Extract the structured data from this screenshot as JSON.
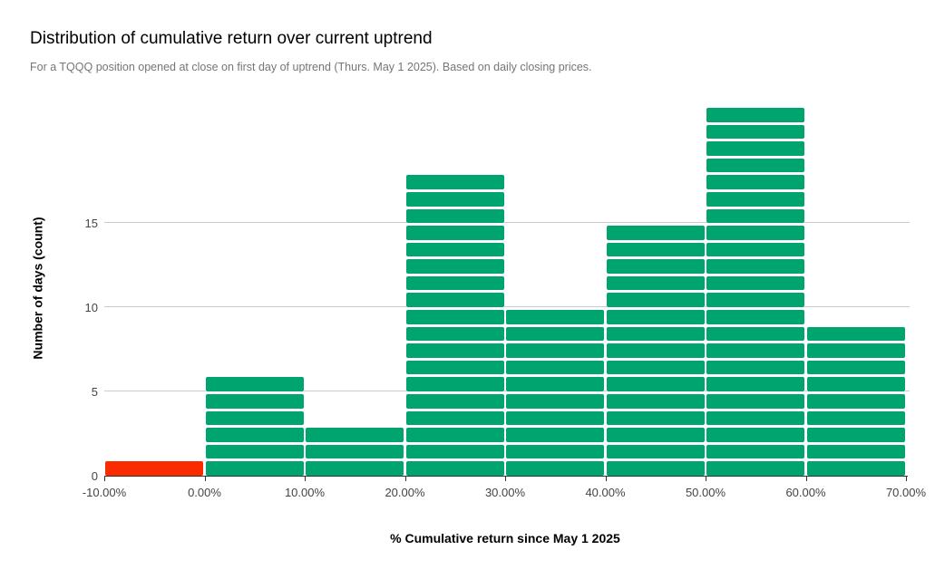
{
  "chart_data": {
    "type": "bar",
    "subtype": "histogram",
    "title": "Distribution of cumulative return over current uptrend",
    "subtitle": "For a TQQQ position opened at close on first day of uptrend (Thurs. May 1 2025). Based on daily closing prices.",
    "xlabel": "% Cumulative return since May 1 2025",
    "ylabel": "Number of days (count)",
    "categories": [
      "-10% to 0%",
      "0% to 10%",
      "10% to 20%",
      "20% to 30%",
      "30% to 40%",
      "40% to 50%",
      "50% to 60%",
      "60% to 70%"
    ],
    "values": [
      1,
      6,
      3,
      18,
      10,
      15,
      22,
      9
    ],
    "bar_colors": [
      "#fb2b00",
      "#00a46e",
      "#00a46e",
      "#00a46e",
      "#00a46e",
      "#00a46e",
      "#00a46e",
      "#00a46e"
    ],
    "x_tick_labels": [
      "-10.00%",
      "0.00%",
      "10.00%",
      "20.00%",
      "30.00%",
      "40.00%",
      "50.00%",
      "60.00%",
      "70.00%"
    ],
    "y_ticks": [
      0,
      5,
      10,
      15
    ],
    "ylim": [
      0,
      22
    ],
    "grid": true,
    "legend_position": "none",
    "style": {
      "segmented_bars": true,
      "positive_color": "#00a46e",
      "negative_color": "#fb2b00",
      "gridline_color": "#cccccc",
      "axis_color": "#333333",
      "tick_label_color": "#444444",
      "title_color": "#000000",
      "subtitle_color": "#757575",
      "background": "#ffffff"
    }
  }
}
